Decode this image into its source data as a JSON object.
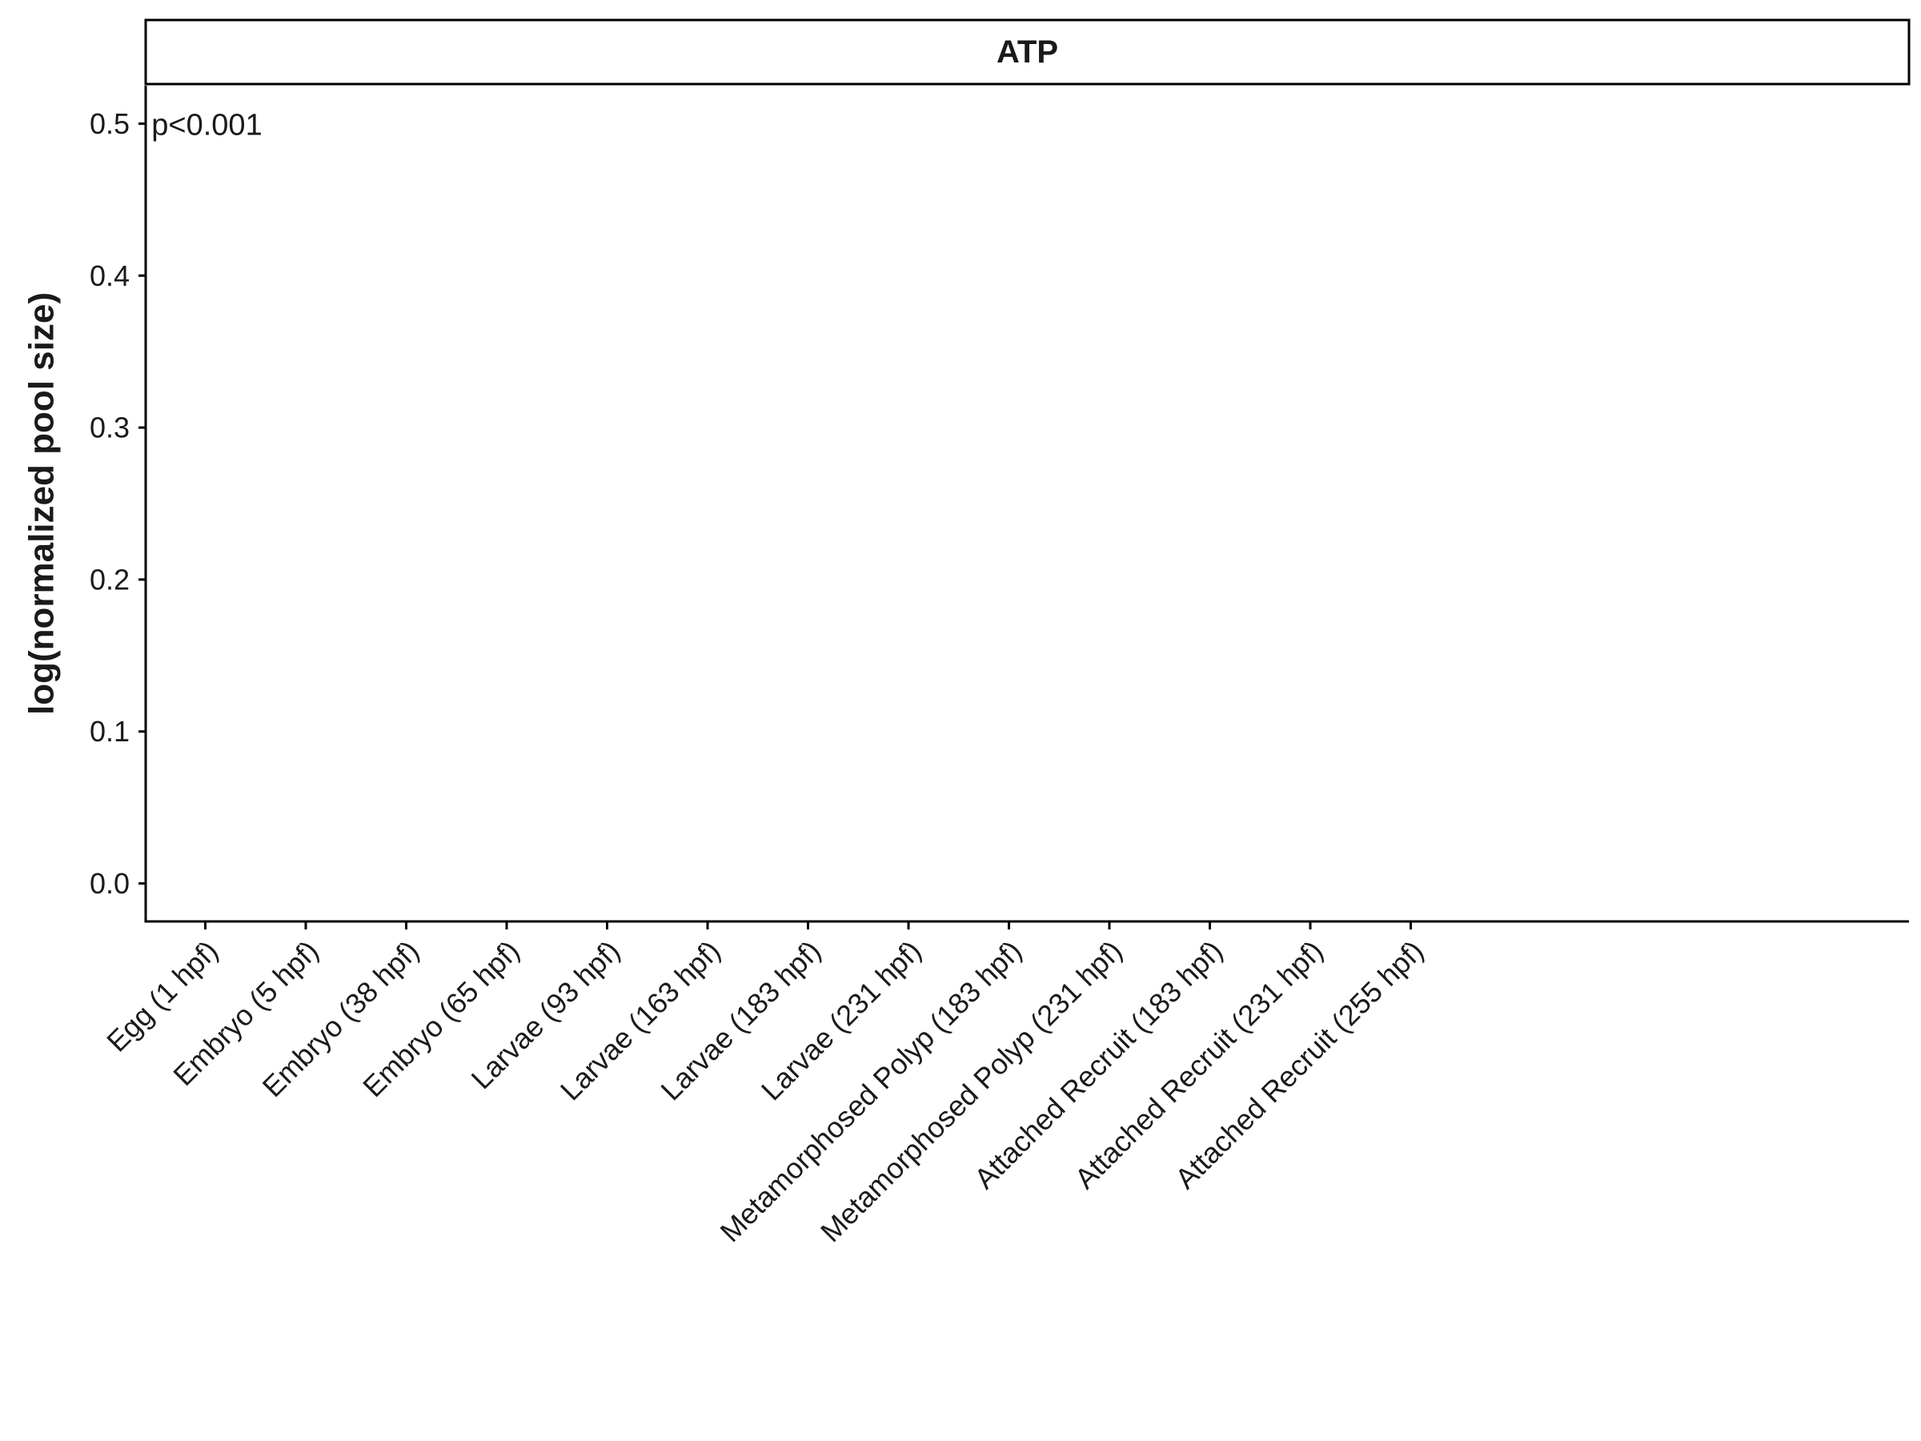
{
  "chart_data": {
    "type": "bar",
    "title": "",
    "facet_label": "ATP",
    "xlabel": "",
    "ylabel": "log(normalized pool size)",
    "categories": [
      "Egg (1 hpf)",
      "Embryo (5 hpf)",
      "Embryo (38 hpf)",
      "Embryo (65 hpf)",
      "Larvae (93 hpf)",
      "Larvae (163 hpf)",
      "Larvae (183 hpf)",
      "Larvae (231 hpf)",
      "Metamorphosed Polyp (183 hpf)",
      "Metamorphosed Polyp (231 hpf)",
      "Attached Recruit (183 hpf)",
      "Attached Recruit (231 hpf)",
      "Attached Recruit (255 hpf)"
    ],
    "ylim": [
      -0.025,
      0.525
    ],
    "yticks": [
      0.0,
      0.1,
      0.2,
      0.3,
      0.4,
      0.5
    ],
    "ytick_labels": [
      "0.0",
      "0.1",
      "0.2",
      "0.3",
      "0.4",
      "0.5"
    ],
    "series": [],
    "annotation": {
      "text": "p<0.001",
      "category_index": 0,
      "y": 0.5
    },
    "grid": false,
    "legend": "none"
  }
}
